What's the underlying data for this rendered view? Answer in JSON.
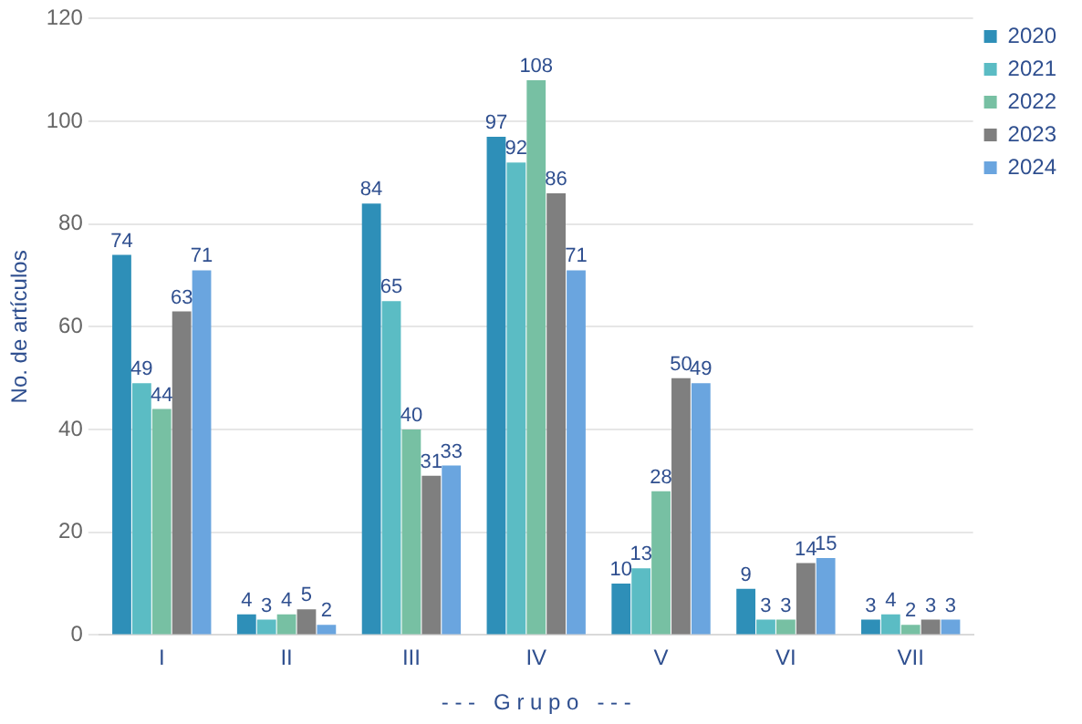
{
  "chart_data": {
    "type": "bar",
    "categories": [
      "I",
      "II",
      "III",
      "IV",
      "V",
      "VI",
      "VII"
    ],
    "series": [
      {
        "name": "2020",
        "color": "#2e8fb8",
        "values": [
          74,
          4,
          84,
          97,
          10,
          9,
          3
        ]
      },
      {
        "name": "2021",
        "color": "#5bbcc4",
        "values": [
          49,
          3,
          65,
          92,
          13,
          3,
          4
        ]
      },
      {
        "name": "2022",
        "color": "#77c0a3",
        "values": [
          44,
          4,
          40,
          108,
          28,
          3,
          2
        ]
      },
      {
        "name": "2023",
        "color": "#7f7f7f",
        "values": [
          63,
          5,
          31,
          86,
          50,
          14,
          3
        ]
      },
      {
        "name": "2024",
        "color": "#6aa5df",
        "values": [
          71,
          2,
          33,
          71,
          49,
          15,
          3
        ]
      }
    ],
    "ylabel": "No. de artículos",
    "xlabel": "- - -   G r u p o   - - -",
    "ylim": [
      0,
      120
    ],
    "yticks": [
      0,
      20,
      40,
      60,
      80,
      100,
      120
    ],
    "grid": "y",
    "legend": "top right",
    "data_labels": true
  }
}
